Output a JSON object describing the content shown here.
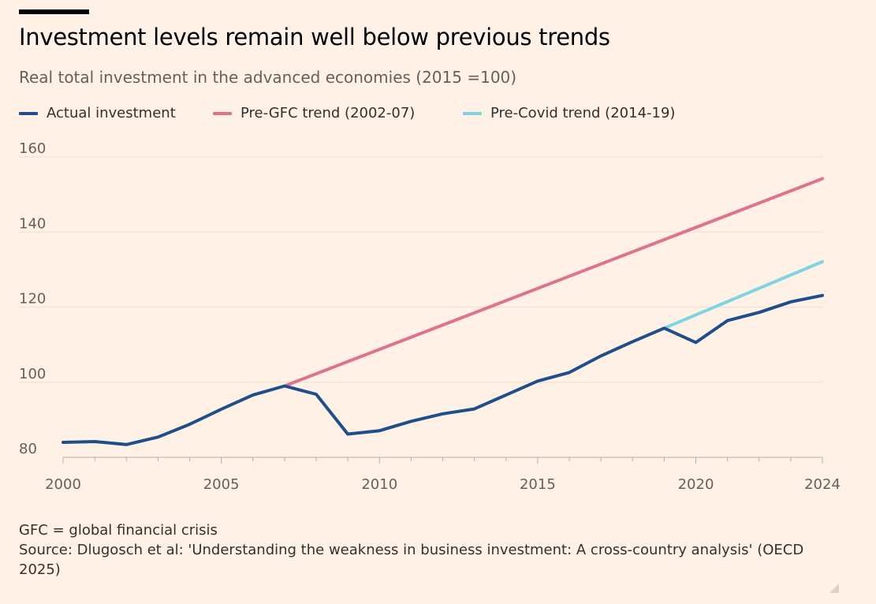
{
  "header": {
    "title": "Investment levels remain well below previous trends",
    "subtitle": "Real total investment in the advanced economies (2015 =100)"
  },
  "legend": [
    {
      "label": "Actual investment",
      "color": "#1e4e8c"
    },
    {
      "label": "Pre-GFC trend (2002-07)",
      "color": "#e0718f"
    },
    {
      "label": "Pre-Covid trend (2014-19)",
      "color": "#7ed4e3"
    }
  ],
  "footnote": {
    "gfc": "GFC = global financial crisis",
    "source": "Source: Dlugosch et al: 'Understanding the weakness in business investment: A cross-country analysis' (OECD 2025)"
  },
  "chart_data": {
    "type": "line",
    "title": "Investment levels remain well below previous trends",
    "subtitle": "Real total investment in the advanced economies (2015 =100)",
    "xlabel": "",
    "ylabel": "",
    "xlim": [
      2000,
      2024
    ],
    "ylim": [
      80,
      160
    ],
    "yticks": [
      80,
      100,
      120,
      140,
      160
    ],
    "xticks": [
      2000,
      2005,
      2010,
      2015,
      2020,
      2024
    ],
    "grid": "horizontal",
    "legend_position": "top",
    "series": [
      {
        "name": "Actual investment",
        "color": "#1e4e8c",
        "x": [
          2000,
          2001,
          2002,
          2003,
          2004,
          2005,
          2006,
          2007,
          2008,
          2009,
          2010,
          2011,
          2012,
          2013,
          2014,
          2015,
          2016,
          2017,
          2018,
          2019,
          2020,
          2021,
          2022,
          2023,
          2024
        ],
        "values": [
          84,
          84.2,
          83.4,
          85.4,
          88.8,
          92.8,
          96.6,
          99,
          96.8,
          86.2,
          87.1,
          89.6,
          91.6,
          92.9,
          96.6,
          100.3,
          102.6,
          107,
          110.8,
          114.4,
          110.6,
          116.4,
          118.6,
          121.4,
          123.1
        ]
      },
      {
        "name": "Pre-GFC trend (2002-07)",
        "color": "#e0718f",
        "x": [
          2007,
          2024
        ],
        "values": [
          99,
          154.2
        ]
      },
      {
        "name": "Pre-Covid trend (2014-19)",
        "color": "#7ed4e3",
        "x": [
          2019,
          2024
        ],
        "values": [
          114.4,
          132.1
        ]
      }
    ]
  }
}
